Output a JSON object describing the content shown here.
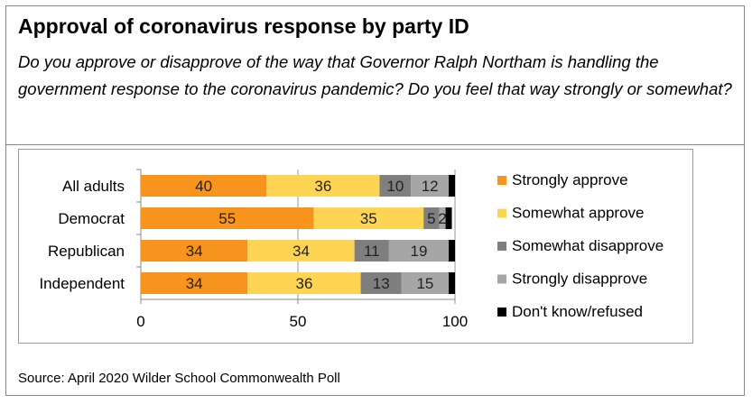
{
  "title": "Approval of coronavirus response by party ID",
  "subtitle": "Do you approve or disapprove of the way that Governor Ralph Northam is handling the government response to the coronavirus pandemic? Do you feel that way strongly or somewhat?",
  "source": "Source: April 2020 Wilder School Commonwealth Poll",
  "chart_data": {
    "type": "bar",
    "orientation": "horizontal",
    "stacked": true,
    "categories": [
      "All adults",
      "Democrat",
      "Republican",
      "Independent"
    ],
    "series": [
      {
        "name": "Strongly approve",
        "color": "#F7941D",
        "values": [
          40,
          55,
          34,
          34
        ]
      },
      {
        "name": "Somewhat approve",
        "color": "#FDD454",
        "values": [
          36,
          35,
          34,
          36
        ]
      },
      {
        "name": "Somewhat disapprove",
        "color": "#7F7F7F",
        "values": [
          10,
          5,
          11,
          13
        ]
      },
      {
        "name": "Strongly disapprove",
        "color": "#A6A6A6",
        "values": [
          12,
          2,
          19,
          15
        ]
      },
      {
        "name": "Don't know/refused",
        "color": "#000000",
        "values": [
          2,
          2,
          2,
          2
        ]
      }
    ],
    "show_labels_for_series": [
      0,
      1,
      2,
      3
    ],
    "xlim": [
      0,
      100
    ],
    "xticks": [
      "0",
      "50",
      "100"
    ],
    "grid": true,
    "legend": "right"
  }
}
